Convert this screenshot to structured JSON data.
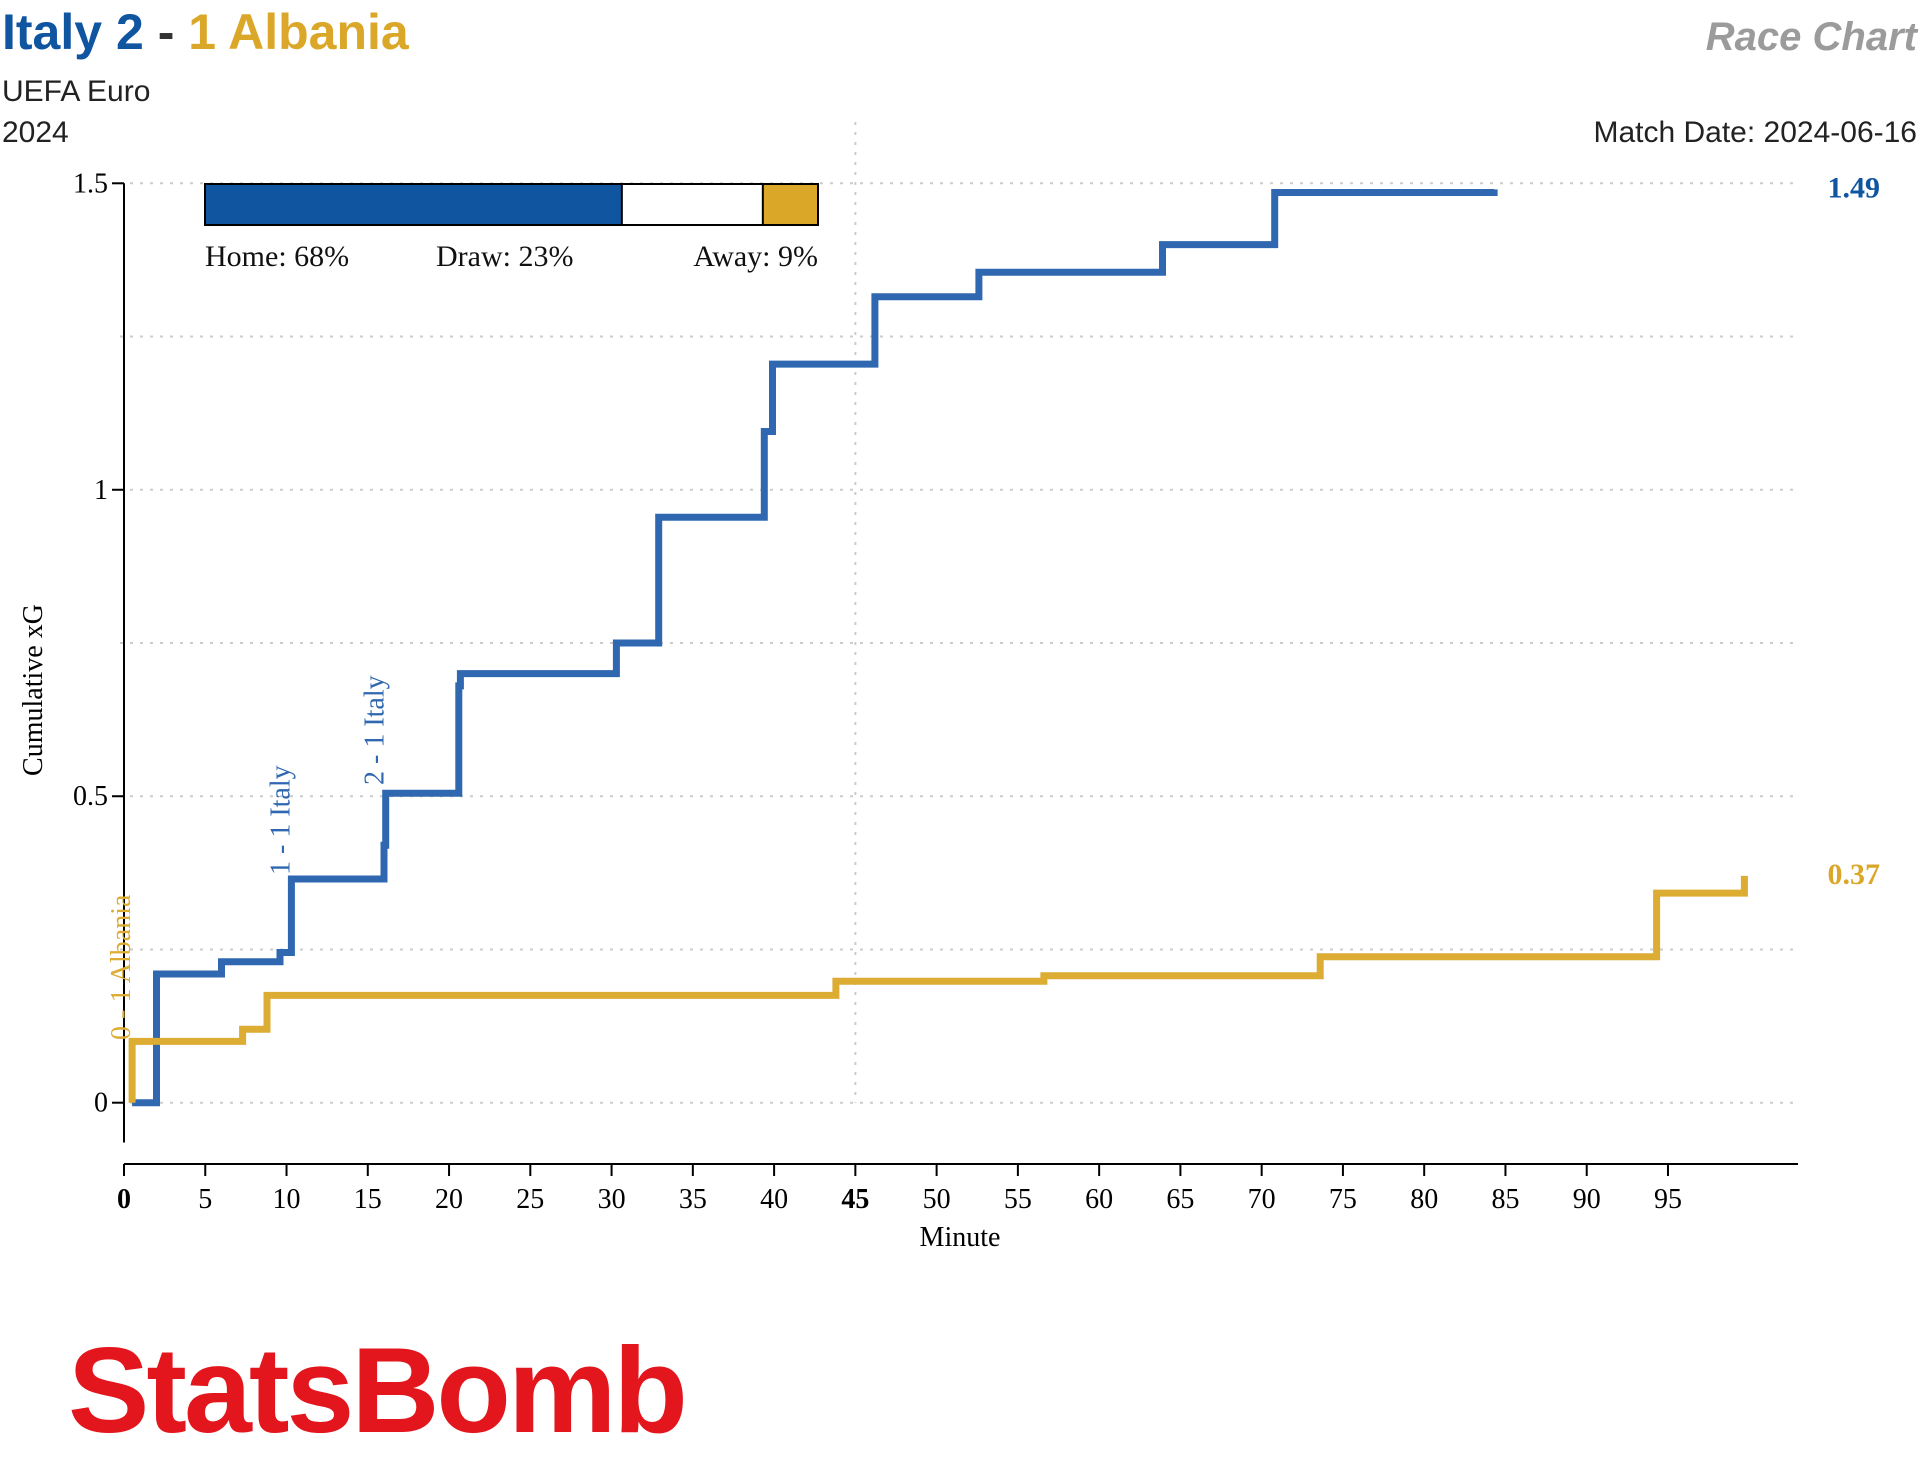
{
  "header": {
    "home_team": "Italy",
    "home_score": "2",
    "separator": "-",
    "away_score": "1",
    "away_team": "Albania",
    "competition": "UEFA Euro",
    "season": "2024",
    "chart_label": "Race Chart",
    "match_date": "Match Date: 2024-06-16"
  },
  "colors": {
    "home": "#0f55a0",
    "home_line": "#2f68b0",
    "away": "#dba729",
    "away_line": "#dcac33",
    "title_gray": "#9b9b9b",
    "grid": "#cccccc",
    "brand": "#e3151d"
  },
  "probability": {
    "home_label": "Home: 68%",
    "draw_label": "Draw: 23%",
    "away_label": "Away: 9%",
    "home": 0.68,
    "draw": 0.23,
    "away": 0.09
  },
  "brand": {
    "logo_text": "StatsBomb"
  },
  "chart_data": {
    "type": "line",
    "line_style": "step",
    "xlabel": "Minute",
    "ylabel": "Cumulative xG",
    "xlim": [
      0,
      103
    ],
    "ylim": [
      -0.1,
      1.6
    ],
    "x_ticks": [
      0,
      5,
      10,
      15,
      20,
      25,
      30,
      35,
      40,
      45,
      50,
      55,
      60,
      65,
      70,
      75,
      80,
      85,
      90,
      95
    ],
    "x_tick_labels": [
      "0",
      "5",
      "10",
      "15",
      "20",
      "25",
      "30",
      "35",
      "40",
      "45",
      "50",
      "55",
      "60",
      "65",
      "70",
      "75",
      "80",
      "85",
      "90",
      "95"
    ],
    "bold_x_ticks": [
      0,
      45
    ],
    "y_ticks": [
      0,
      0.5,
      1,
      1.5
    ],
    "y_tick_labels": [
      "0",
      "0.5",
      "1",
      "1.5"
    ],
    "y_gridlines": [
      0,
      0.25,
      0.5,
      0.75,
      1,
      1.25,
      1.5
    ],
    "x_gridlines": [
      45
    ],
    "grid": true,
    "series": [
      {
        "name": "Italy",
        "final_label": "1.49",
        "points": [
          [
            0.5,
            0
          ],
          [
            2,
            0
          ],
          [
            2,
            0.21
          ],
          [
            6,
            0.21
          ],
          [
            6,
            0.23
          ],
          [
            9.6,
            0.23
          ],
          [
            9.6,
            0.245
          ],
          [
            10.3,
            0.245
          ],
          [
            10.3,
            0.365
          ],
          [
            16,
            0.365
          ],
          [
            16,
            0.42
          ],
          [
            16.1,
            0.42
          ],
          [
            16.1,
            0.505
          ],
          [
            20.6,
            0.505
          ],
          [
            20.6,
            0.68
          ],
          [
            20.7,
            0.68
          ],
          [
            20.7,
            0.7
          ],
          [
            30.3,
            0.7
          ],
          [
            30.3,
            0.75
          ],
          [
            32.9,
            0.75
          ],
          [
            32.9,
            0.955
          ],
          [
            39.4,
            0.955
          ],
          [
            39.4,
            1.095
          ],
          [
            39.9,
            1.095
          ],
          [
            39.9,
            1.205
          ],
          [
            46.2,
            1.205
          ],
          [
            46.2,
            1.315
          ],
          [
            52.6,
            1.315
          ],
          [
            52.6,
            1.355
          ],
          [
            63.9,
            1.355
          ],
          [
            63.9,
            1.4
          ],
          [
            70.8,
            1.4
          ],
          [
            70.8,
            1.485
          ],
          [
            84.3,
            1.485
          ],
          [
            84.3,
            1.49
          ]
        ]
      },
      {
        "name": "Albania",
        "final_label": "0.37",
        "points": [
          [
            0.5,
            0
          ],
          [
            0.5,
            0.1
          ],
          [
            7.3,
            0.1
          ],
          [
            7.3,
            0.12
          ],
          [
            8.8,
            0.12
          ],
          [
            8.8,
            0.175
          ],
          [
            43.8,
            0.175
          ],
          [
            43.8,
            0.198
          ],
          [
            56.6,
            0.198
          ],
          [
            56.6,
            0.207
          ],
          [
            73.6,
            0.207
          ],
          [
            73.6,
            0.238
          ],
          [
            94.3,
            0.238
          ],
          [
            94.3,
            0.342
          ],
          [
            99.7,
            0.342
          ],
          [
            99.7,
            0.37
          ]
        ]
      }
    ],
    "goals": [
      {
        "label": "0 - 1 Albania",
        "team": "away",
        "minute": 0.5
      },
      {
        "label": "1 - 1 Italy",
        "team": "home",
        "minute": 10.3
      },
      {
        "label": "2 - 1 Italy",
        "team": "home",
        "minute": 16.1
      }
    ]
  }
}
